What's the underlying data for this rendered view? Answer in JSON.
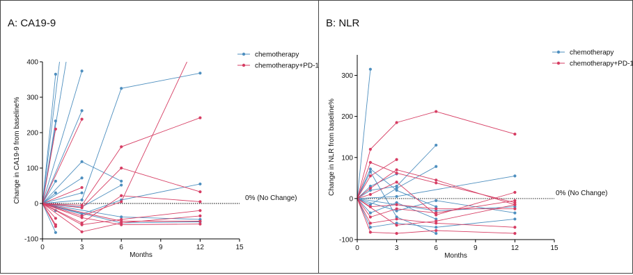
{
  "colors": {
    "chemo": "#4e8fbf",
    "pd1": "#d63d63",
    "axis": "#000000"
  },
  "chart_data": [
    {
      "panel_title": "A: CA19-9",
      "type": "line",
      "xlabel": "Months",
      "ylabel": "Change in  CA19-9 from baseline%",
      "xlim": [
        0,
        15
      ],
      "ylim": [
        -100,
        400
      ],
      "xticks": [
        0,
        3,
        6,
        9,
        12,
        15
      ],
      "yticks": [
        -100,
        0,
        100,
        200,
        300,
        400
      ],
      "reference_line": {
        "y": 0,
        "label": "0% (No Change)"
      },
      "legend": {
        "position": "top-right",
        "entries": [
          "chemotherapy",
          "chemotherapy+PD-1"
        ]
      },
      "series": [
        {
          "group": "chemotherapy",
          "points": [
            [
              0,
              0
            ],
            [
              1,
              365
            ]
          ]
        },
        {
          "group": "chemotherapy",
          "points": [
            [
              0,
              0
            ],
            [
              1,
              233
            ]
          ]
        },
        {
          "group": "chemotherapy",
          "points": [
            [
              0,
              0
            ],
            [
              1,
              63
            ]
          ]
        },
        {
          "group": "chemotherapy",
          "points": [
            [
              0,
              0
            ],
            [
              1,
              30
            ]
          ]
        },
        {
          "group": "chemotherapy",
          "points": [
            [
              0,
              0
            ],
            [
              1,
              -10
            ]
          ]
        },
        {
          "group": "chemotherapy",
          "points": [
            [
              0,
              0
            ],
            [
              1,
              -20
            ]
          ]
        },
        {
          "group": "chemotherapy",
          "points": [
            [
              0,
              0
            ],
            [
              1,
              -82
            ]
          ]
        },
        {
          "group": "chemotherapy",
          "points": [
            [
              0,
              0
            ],
            [
              1.3,
              400
            ]
          ]
        },
        {
          "group": "chemotherapy",
          "points": [
            [
              0,
              0
            ],
            [
              1.8,
              400
            ]
          ]
        },
        {
          "group": "chemotherapy",
          "points": [
            [
              0,
              0
            ],
            [
              3,
              374
            ]
          ]
        },
        {
          "group": "chemotherapy",
          "points": [
            [
              0,
              0
            ],
            [
              3,
              262
            ]
          ]
        },
        {
          "group": "chemotherapy",
          "points": [
            [
              0,
              0
            ],
            [
              3,
              118
            ],
            [
              6,
              63
            ]
          ]
        },
        {
          "group": "chemotherapy",
          "points": [
            [
              0,
              0
            ],
            [
              3,
              72
            ]
          ]
        },
        {
          "group": "chemotherapy",
          "points": [
            [
              0,
              0
            ],
            [
              3,
              30
            ]
          ]
        },
        {
          "group": "chemotherapy",
          "points": [
            [
              0,
              0
            ],
            [
              3,
              10
            ],
            [
              6,
              325
            ],
            [
              12,
              368
            ]
          ]
        },
        {
          "group": "chemotherapy",
          "points": [
            [
              0,
              0
            ],
            [
              3,
              -10
            ],
            [
              6,
              52
            ]
          ]
        },
        {
          "group": "chemotherapy",
          "points": [
            [
              0,
              0
            ],
            [
              3,
              -30
            ],
            [
              6,
              10
            ],
            [
              12,
              55
            ]
          ]
        },
        {
          "group": "chemotherapy",
          "points": [
            [
              0,
              0
            ],
            [
              6,
              -38
            ],
            [
              12,
              -45
            ]
          ]
        },
        {
          "group": "chemotherapy",
          "points": [
            [
              0,
              0
            ],
            [
              6,
              -55
            ],
            [
              12,
              -52
            ]
          ]
        },
        {
          "group": "chemotherapy+PD-1",
          "points": [
            [
              0,
              0
            ],
            [
              1,
              210
            ]
          ]
        },
        {
          "group": "chemotherapy+PD-1",
          "points": [
            [
              0,
              0
            ],
            [
              1,
              -42
            ]
          ]
        },
        {
          "group": "chemotherapy+PD-1",
          "points": [
            [
              0,
              0
            ],
            [
              1,
              -60
            ]
          ]
        },
        {
          "group": "chemotherapy+PD-1",
          "points": [
            [
              0,
              0
            ],
            [
              1,
              -65
            ]
          ]
        },
        {
          "group": "chemotherapy+PD-1",
          "points": [
            [
              0,
              0
            ],
            [
              3,
              238
            ]
          ]
        },
        {
          "group": "chemotherapy+PD-1",
          "points": [
            [
              0,
              0
            ],
            [
              3,
              45
            ]
          ]
        },
        {
          "group": "chemotherapy+PD-1",
          "points": [
            [
              0,
              0
            ],
            [
              3,
              -5
            ],
            [
              6,
              160
            ],
            [
              12,
              242
            ]
          ]
        },
        {
          "group": "chemotherapy+PD-1",
          "points": [
            [
              0,
              0
            ],
            [
              3,
              -12
            ],
            [
              6,
              100
            ],
            [
              12,
              33
            ]
          ]
        },
        {
          "group": "chemotherapy+PD-1",
          "points": [
            [
              0,
              0
            ],
            [
              3,
              -35
            ],
            [
              6,
              5
            ],
            [
              11,
              400
            ]
          ]
        },
        {
          "group": "chemotherapy+PD-1",
          "points": [
            [
              0,
              0
            ],
            [
              3,
              -55
            ],
            [
              6,
              22
            ],
            [
              12,
              5
            ]
          ]
        },
        {
          "group": "chemotherapy+PD-1",
          "points": [
            [
              0,
              0
            ],
            [
              3,
              -60
            ],
            [
              6,
              -45
            ],
            [
              12,
              -20
            ]
          ]
        },
        {
          "group": "chemotherapy+PD-1",
          "points": [
            [
              0,
              0
            ],
            [
              3,
              -80
            ],
            [
              6,
              -55
            ],
            [
              12,
              -35
            ]
          ]
        },
        {
          "group": "chemotherapy+PD-1",
          "points": [
            [
              0,
              0
            ],
            [
              3,
              -40
            ],
            [
              6,
              -60
            ],
            [
              12,
              -58
            ]
          ]
        },
        {
          "group": "chemotherapy+PD-1",
          "points": [
            [
              0,
              0
            ],
            [
              6,
              -50
            ],
            [
              12,
              -50
            ]
          ]
        }
      ]
    },
    {
      "panel_title": "B: NLR",
      "type": "line",
      "xlabel": "Months",
      "ylabel": "Change in  NLR from baseline%",
      "xlim": [
        0,
        15
      ],
      "ylim": [
        -100,
        350
      ],
      "xticks": [
        0,
        3,
        6,
        9,
        12,
        15
      ],
      "yticks": [
        -100,
        0,
        100,
        200,
        300
      ],
      "reference_line": {
        "y": 0,
        "label": "0% (No Change)"
      },
      "legend": {
        "position": "top-right",
        "entries": [
          "chemotherapy",
          "chemotherapy+PD-1"
        ]
      },
      "series": [
        {
          "group": "chemotherapy",
          "points": [
            [
              0,
              0
            ],
            [
              1,
              315
            ]
          ]
        },
        {
          "group": "chemotherapy",
          "points": [
            [
              0,
              0
            ],
            [
              1,
              72
            ],
            [
              3,
              20
            ],
            [
              6,
              -20
            ]
          ]
        },
        {
          "group": "chemotherapy",
          "points": [
            [
              0,
              0
            ],
            [
              1,
              65
            ],
            [
              3,
              -45
            ],
            [
              6,
              -85
            ]
          ]
        },
        {
          "group": "chemotherapy",
          "points": [
            [
              0,
              0
            ],
            [
              1,
              30
            ],
            [
              3,
              60
            ]
          ]
        },
        {
          "group": "chemotherapy",
          "points": [
            [
              0,
              0
            ],
            [
              1,
              20
            ],
            [
              3,
              30
            ],
            [
              6,
              130
            ]
          ]
        },
        {
          "group": "chemotherapy",
          "points": [
            [
              0,
              0
            ],
            [
              1,
              -15
            ],
            [
              3,
              25
            ],
            [
              6,
              78
            ]
          ]
        },
        {
          "group": "chemotherapy",
          "points": [
            [
              0,
              0
            ],
            [
              1,
              -35
            ],
            [
              3,
              -10
            ],
            [
              6,
              -50
            ]
          ]
        },
        {
          "group": "chemotherapy",
          "points": [
            [
              0,
              0
            ],
            [
              1,
              -70
            ],
            [
              3,
              -60
            ],
            [
              6,
              -70
            ],
            [
              12,
              -50
            ]
          ]
        },
        {
          "group": "chemotherapy",
          "points": [
            [
              0,
              0
            ],
            [
              3,
              5
            ],
            [
              12,
              55
            ]
          ]
        },
        {
          "group": "chemotherapy",
          "points": [
            [
              0,
              0
            ],
            [
              3,
              -30
            ],
            [
              6,
              -5
            ],
            [
              12,
              -35
            ]
          ]
        },
        {
          "group": "chemotherapy",
          "points": [
            [
              0,
              0
            ],
            [
              6,
              -30
            ],
            [
              12,
              -20
            ]
          ]
        },
        {
          "group": "chemotherapy+PD-1",
          "points": [
            [
              0,
              0
            ],
            [
              1,
              120
            ],
            [
              3,
              185
            ],
            [
              6,
              212
            ],
            [
              12,
              157
            ]
          ]
        },
        {
          "group": "chemotherapy+PD-1",
          "points": [
            [
              0,
              0
            ],
            [
              1,
              88
            ],
            [
              3,
              62
            ],
            [
              6,
              38
            ],
            [
              12,
              -10
            ]
          ]
        },
        {
          "group": "chemotherapy+PD-1",
          "points": [
            [
              0,
              0
            ],
            [
              1,
              55
            ],
            [
              3,
              95
            ]
          ]
        },
        {
          "group": "chemotherapy+PD-1",
          "points": [
            [
              0,
              0
            ],
            [
              1,
              25
            ],
            [
              3,
              70
            ],
            [
              6,
              45
            ],
            [
              12,
              -15
            ]
          ]
        },
        {
          "group": "chemotherapy+PD-1",
          "points": [
            [
              0,
              0
            ],
            [
              1,
              10
            ],
            [
              3,
              40
            ],
            [
              6,
              -40
            ],
            [
              12,
              15
            ]
          ]
        },
        {
          "group": "chemotherapy+PD-1",
          "points": [
            [
              0,
              0
            ],
            [
              1,
              -20
            ],
            [
              3,
              -15
            ],
            [
              6,
              -25
            ],
            [
              12,
              -25
            ]
          ]
        },
        {
          "group": "chemotherapy+PD-1",
          "points": [
            [
              0,
              0
            ],
            [
              1,
              -45
            ],
            [
              3,
              -25
            ],
            [
              6,
              -35
            ],
            [
              12,
              -5
            ]
          ]
        },
        {
          "group": "chemotherapy+PD-1",
          "points": [
            [
              0,
              0
            ],
            [
              1,
              -60
            ],
            [
              3,
              -50
            ],
            [
              6,
              -60
            ],
            [
              12,
              -70
            ]
          ]
        },
        {
          "group": "chemotherapy+PD-1",
          "points": [
            [
              0,
              0
            ],
            [
              1,
              -82
            ],
            [
              3,
              -85
            ],
            [
              6,
              -78
            ],
            [
              12,
              -85
            ]
          ]
        },
        {
          "group": "chemotherapy+PD-1",
          "points": [
            [
              0,
              0
            ],
            [
              3,
              -65
            ],
            [
              6,
              -55
            ],
            [
              12,
              -15
            ]
          ]
        }
      ]
    }
  ]
}
